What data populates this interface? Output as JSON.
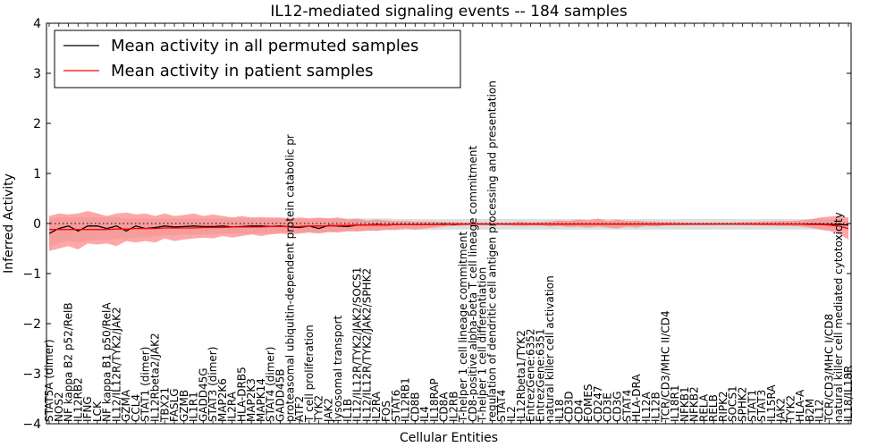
{
  "chart_data": {
    "type": "line",
    "title": "IL12-mediated signaling events -- 184 samples",
    "xlabel": "Cellular Entities",
    "ylabel": "Inferred Activity",
    "ylim": [
      -4,
      4
    ],
    "yticks": [
      -4,
      -3,
      -2,
      -1,
      0,
      1,
      2,
      3,
      4
    ],
    "ytick_labels": [
      "−4",
      "−3",
      "−2",
      "−1",
      "0",
      "1",
      "2",
      "3",
      "4"
    ],
    "grid": false,
    "legend_position": "top-left",
    "reference_line": 0,
    "colors": {
      "permuted": "#000000",
      "patient": "#ff0000",
      "permuted_band": "#c8c8c8",
      "patient_band": "#ff8080"
    },
    "categories": [
      "STAT5A (dimer)",
      "NOS2",
      "NF kappa B2 p52/RelB",
      "IL12RB2",
      "IFNG",
      "LCK",
      "NF kappa B1 p50/RelA",
      "IL12/IL12R/TYK2/JAK2",
      "GZMA",
      "CCL4",
      "STAT1 (dimer)",
      "IL12Rbeta2/JAK2",
      "TBX21",
      "FASLG",
      "GZMB",
      "IL1R1",
      "GADD45G",
      "STAT3 (dimer)",
      "MAP2K6",
      "IL2RA",
      "HLA-DRB5",
      "MAP2K3",
      "MAPK14",
      "STAT4 (dimer)",
      "GADD45B",
      "proteasomal ubiquitin-dependent protein catabolic pr",
      "ATF2",
      "T cell proliferation",
      "TYK2",
      "JAK2",
      "lysosomal transport",
      "IL1B",
      "IL12/IL12R/TYK2/JAK2/SOCS1",
      "IL12/IL12R/TYK2/JAK2/SPHK2",
      "IL2RA",
      "FOS",
      "STAT6",
      "IL12RB1",
      "CD8B",
      "IL4",
      "IL18RAP",
      "CD8A",
      "IL2RB",
      "T-helper 1 cell lineage commitment",
      "CD8-positive alpha-beta T cell lineage commitment",
      "T-helper 1 cell differentiation",
      "regulation of dendritic cell antigen processing and presentation",
      "STAT4",
      "IL2",
      "IL12Rbeta1/TYK2",
      "EntrezGene:6352",
      "EntrezGene:6351",
      "natural killer cell activation",
      "IL18",
      "CD3D",
      "CD4",
      "EOMES",
      "CD247",
      "CD3E",
      "CD3G",
      "STAT4",
      "HLA-DRA",
      "IL12A",
      "IL12B",
      "TCR/CD3/MHC II/CD4",
      "IL18R1",
      "NFKB1",
      "NFKB2",
      "RELA",
      "RELB",
      "RIPK2",
      "SOCS1",
      "SPHK2",
      "STAT1",
      "STAT3",
      "IL15RA",
      "JAK2",
      "TYK2",
      "HLA-A",
      "B2M",
      "IL12",
      "TCR/CD3/MHC I/CD8",
      "natural killer cell mediated cytotoxicity",
      "IL18/IL18R"
    ],
    "series": [
      {
        "name": "Mean activity in all permuted samples",
        "values": [
          -0.2,
          -0.1,
          -0.05,
          -0.15,
          -0.05,
          -0.05,
          -0.1,
          -0.05,
          -0.15,
          -0.05,
          -0.1,
          -0.08,
          -0.05,
          -0.07,
          -0.06,
          -0.05,
          -0.06,
          -0.06,
          -0.05,
          -0.07,
          -0.06,
          -0.05,
          -0.05,
          -0.06,
          -0.05,
          -0.07,
          -0.08,
          -0.05,
          -0.1,
          -0.04,
          -0.05,
          -0.06,
          -0.03,
          -0.03,
          -0.02,
          -0.03,
          -0.02,
          -0.02,
          -0.02,
          -0.02,
          -0.02,
          -0.01,
          -0.02,
          -0.01,
          -0.01,
          -0.01,
          -0.01,
          -0.01,
          -0.01,
          -0.01,
          -0.01,
          -0.01,
          -0.01,
          -0.01,
          -0.01,
          -0.01,
          -0.01,
          -0.01,
          -0.01,
          -0.01,
          -0.01,
          -0.01,
          -0.01,
          -0.01,
          -0.01,
          -0.01,
          -0.01,
          -0.01,
          -0.01,
          -0.01,
          -0.01,
          -0.01,
          -0.01,
          -0.01,
          -0.01,
          -0.01,
          -0.01,
          -0.01,
          -0.01,
          -0.01,
          -0.01,
          -0.02,
          -0.02,
          -0.03
        ],
        "band": [
          [
            -0.45,
            0.1
          ],
          [
            -0.4,
            0.12
          ],
          [
            -0.35,
            0.12
          ],
          [
            -0.38,
            0.13
          ],
          [
            -0.35,
            0.12
          ],
          [
            -0.33,
            0.12
          ],
          [
            -0.33,
            0.12
          ],
          [
            -0.3,
            0.12
          ],
          [
            -0.32,
            0.1
          ],
          [
            -0.28,
            0.1
          ],
          [
            -0.28,
            0.1
          ],
          [
            -0.26,
            0.1
          ],
          [
            -0.24,
            0.1
          ],
          [
            -0.24,
            0.1
          ],
          [
            -0.22,
            0.1
          ],
          [
            -0.22,
            0.1
          ],
          [
            -0.22,
            0.1
          ],
          [
            -0.21,
            0.1
          ],
          [
            -0.2,
            0.1
          ],
          [
            -0.2,
            0.1
          ],
          [
            -0.2,
            0.1
          ],
          [
            -0.2,
            0.1
          ],
          [
            -0.19,
            0.1
          ],
          [
            -0.19,
            0.1
          ],
          [
            -0.18,
            0.1
          ],
          [
            -0.18,
            0.1
          ],
          [
            -0.18,
            0.1
          ],
          [
            -0.17,
            0.1
          ],
          [
            -0.17,
            0.1
          ],
          [
            -0.17,
            0.1
          ],
          [
            -0.16,
            0.1
          ],
          [
            -0.16,
            0.1
          ],
          [
            -0.15,
            0.1
          ],
          [
            -0.15,
            0.1
          ],
          [
            -0.14,
            0.1
          ],
          [
            -0.14,
            0.1
          ],
          [
            -0.13,
            0.09
          ],
          [
            -0.13,
            0.09
          ],
          [
            -0.13,
            0.09
          ],
          [
            -0.13,
            0.09
          ],
          [
            -0.13,
            0.09
          ],
          [
            -0.12,
            0.09
          ],
          [
            -0.12,
            0.09
          ],
          [
            -0.12,
            0.09
          ],
          [
            -0.12,
            0.09
          ],
          [
            -0.12,
            0.09
          ],
          [
            -0.12,
            0.09
          ],
          [
            -0.12,
            0.09
          ],
          [
            -0.12,
            0.09
          ],
          [
            -0.12,
            0.09
          ],
          [
            -0.12,
            0.09
          ],
          [
            -0.12,
            0.09
          ],
          [
            -0.12,
            0.09
          ],
          [
            -0.12,
            0.09
          ],
          [
            -0.12,
            0.09
          ],
          [
            -0.12,
            0.09
          ],
          [
            -0.12,
            0.09
          ],
          [
            -0.12,
            0.09
          ],
          [
            -0.12,
            0.09
          ],
          [
            -0.12,
            0.09
          ],
          [
            -0.12,
            0.09
          ],
          [
            -0.12,
            0.09
          ],
          [
            -0.12,
            0.09
          ],
          [
            -0.12,
            0.09
          ],
          [
            -0.12,
            0.09
          ],
          [
            -0.12,
            0.09
          ],
          [
            -0.12,
            0.09
          ],
          [
            -0.12,
            0.09
          ],
          [
            -0.12,
            0.09
          ],
          [
            -0.12,
            0.09
          ],
          [
            -0.12,
            0.09
          ],
          [
            -0.12,
            0.09
          ],
          [
            -0.12,
            0.09
          ],
          [
            -0.12,
            0.09
          ],
          [
            -0.12,
            0.09
          ],
          [
            -0.12,
            0.09
          ],
          [
            -0.12,
            0.09
          ],
          [
            -0.12,
            0.09
          ],
          [
            -0.12,
            0.09
          ],
          [
            -0.12,
            0.09
          ],
          [
            -0.12,
            0.09
          ],
          [
            -0.13,
            0.09
          ],
          [
            -0.13,
            0.09
          ],
          [
            -0.14,
            0.1
          ]
        ]
      },
      {
        "name": "Mean activity in patient samples",
        "values": [
          -0.12,
          -0.12,
          -0.12,
          -0.12,
          -0.12,
          -0.12,
          -0.12,
          -0.11,
          -0.11,
          -0.1,
          -0.1,
          -0.1,
          -0.09,
          -0.09,
          -0.09,
          -0.09,
          -0.08,
          -0.08,
          -0.08,
          -0.07,
          -0.07,
          -0.07,
          -0.07,
          -0.06,
          -0.06,
          -0.06,
          -0.06,
          -0.05,
          -0.05,
          -0.05,
          -0.04,
          -0.04,
          -0.03,
          -0.03,
          -0.03,
          -0.03,
          -0.02,
          -0.02,
          -0.02,
          -0.02,
          -0.02,
          -0.02,
          -0.01,
          -0.01,
          -0.01,
          -0.01,
          -0.01,
          -0.01,
          -0.01,
          -0.01,
          -0.01,
          -0.01,
          -0.01,
          -0.01,
          -0.01,
          -0.01,
          -0.01,
          -0.01,
          -0.01,
          -0.01,
          -0.01,
          -0.01,
          -0.01,
          -0.01,
          -0.01,
          -0.01,
          -0.01,
          -0.01,
          -0.01,
          -0.01,
          -0.01,
          -0.01,
          -0.01,
          -0.01,
          -0.01,
          -0.01,
          -0.01,
          -0.01,
          -0.01,
          -0.02,
          -0.02,
          -0.03,
          -0.05,
          -0.1
        ],
        "band": [
          [
            -0.55,
            0.15
          ],
          [
            -0.5,
            0.2
          ],
          [
            -0.45,
            0.18
          ],
          [
            -0.52,
            0.2
          ],
          [
            -0.4,
            0.25
          ],
          [
            -0.42,
            0.2
          ],
          [
            -0.4,
            0.15
          ],
          [
            -0.45,
            0.2
          ],
          [
            -0.35,
            0.22
          ],
          [
            -0.38,
            0.18
          ],
          [
            -0.35,
            0.2
          ],
          [
            -0.38,
            0.15
          ],
          [
            -0.3,
            0.2
          ],
          [
            -0.35,
            0.15
          ],
          [
            -0.32,
            0.17
          ],
          [
            -0.3,
            0.2
          ],
          [
            -0.28,
            0.15
          ],
          [
            -0.3,
            0.18
          ],
          [
            -0.25,
            0.15
          ],
          [
            -0.28,
            0.12
          ],
          [
            -0.25,
            0.15
          ],
          [
            -0.22,
            0.12
          ],
          [
            -0.25,
            0.13
          ],
          [
            -0.22,
            0.12
          ],
          [
            -0.2,
            0.12
          ],
          [
            -0.22,
            0.1
          ],
          [
            -0.2,
            0.12
          ],
          [
            -0.18,
            0.1
          ],
          [
            -0.2,
            0.12
          ],
          [
            -0.17,
            0.1
          ],
          [
            -0.18,
            0.12
          ],
          [
            -0.15,
            0.08
          ],
          [
            -0.16,
            0.1
          ],
          [
            -0.14,
            0.06
          ],
          [
            -0.15,
            0.08
          ],
          [
            -0.12,
            0.06
          ],
          [
            -0.13,
            0.05
          ],
          [
            -0.1,
            0.05
          ],
          [
            -0.12,
            0.04
          ],
          [
            -0.1,
            0.04
          ],
          [
            -0.08,
            0.04
          ],
          [
            -0.06,
            0.03
          ],
          [
            -0.05,
            0.03
          ],
          [
            -0.04,
            0.02
          ],
          [
            -0.03,
            0.02
          ],
          [
            -0.03,
            0.02
          ],
          [
            -0.03,
            0.02
          ],
          [
            -0.03,
            0.02
          ],
          [
            -0.04,
            0.02
          ],
          [
            -0.05,
            0.04
          ],
          [
            -0.04,
            0.02
          ],
          [
            -0.04,
            0.03
          ],
          [
            -0.06,
            0.04
          ],
          [
            -0.05,
            0.06
          ],
          [
            -0.07,
            0.05
          ],
          [
            -0.06,
            0.08
          ],
          [
            -0.08,
            0.06
          ],
          [
            -0.06,
            0.1
          ],
          [
            -0.08,
            0.05
          ],
          [
            -0.1,
            0.08
          ],
          [
            -0.06,
            0.05
          ],
          [
            -0.08,
            0.06
          ],
          [
            -0.05,
            0.04
          ],
          [
            -0.06,
            0.04
          ],
          [
            -0.04,
            0.03
          ],
          [
            -0.04,
            0.03
          ],
          [
            -0.03,
            0.02
          ],
          [
            -0.03,
            0.02
          ],
          [
            -0.03,
            0.02
          ],
          [
            -0.03,
            0.02
          ],
          [
            -0.02,
            0.02
          ],
          [
            -0.02,
            0.02
          ],
          [
            -0.03,
            0.03
          ],
          [
            -0.03,
            0.03
          ],
          [
            -0.04,
            0.04
          ],
          [
            -0.04,
            0.04
          ],
          [
            -0.05,
            0.05
          ],
          [
            -0.05,
            0.05
          ],
          [
            -0.06,
            0.06
          ],
          [
            -0.08,
            0.08
          ],
          [
            -0.12,
            0.12
          ],
          [
            -0.15,
            0.14
          ],
          [
            -0.2,
            0.15
          ],
          [
            -0.32,
            0.12
          ]
        ]
      }
    ]
  }
}
